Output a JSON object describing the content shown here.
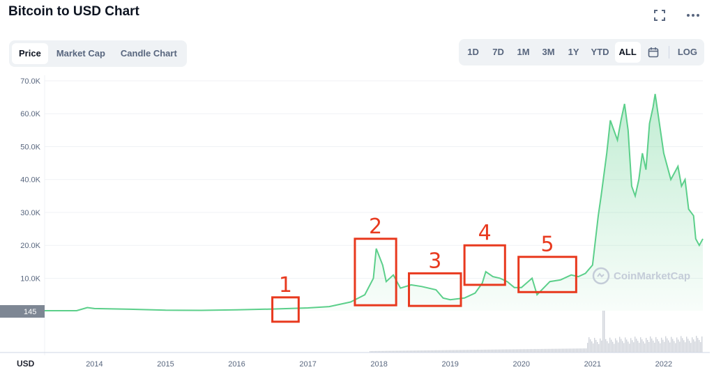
{
  "header": {
    "title": "Bitcoin to USD Chart"
  },
  "icons": {
    "fullscreen": "fullscreen-icon",
    "more": "more-icon",
    "calendar": "calendar-icon"
  },
  "tabs": [
    {
      "label": "Price",
      "active": true
    },
    {
      "label": "Market Cap",
      "active": false
    },
    {
      "label": "Candle Chart",
      "active": false
    }
  ],
  "ranges": [
    {
      "label": "1D",
      "active": false
    },
    {
      "label": "7D",
      "active": false
    },
    {
      "label": "1M",
      "active": false
    },
    {
      "label": "3M",
      "active": false
    },
    {
      "label": "1Y",
      "active": false
    },
    {
      "label": "YTD",
      "active": false
    },
    {
      "label": "ALL",
      "active": true
    }
  ],
  "log_label": "LOG",
  "watermark": "CoinMarketCap",
  "colors": {
    "line": "#5bcf8a",
    "fill": "#d9f4e3",
    "annotation": "#e8391e",
    "price_tag": "#7e8794",
    "volume": "#cfd3da"
  },
  "chart_data": {
    "type": "line",
    "x_unit": "year",
    "xticks": [
      "2014",
      "2015",
      "2016",
      "2017",
      "2018",
      "2019",
      "2020",
      "2021",
      "2022"
    ],
    "xlim": [
      2013.3,
      2022.55
    ],
    "yticks": [
      "70.0K",
      "60.0K",
      "50.0K",
      "40.0K",
      "30.0K",
      "20.0K",
      "10.0K"
    ],
    "ylim": [
      145,
      70000
    ],
    "corner_label": "USD",
    "current_price_tag": "145",
    "x": [
      2013.3,
      2013.75,
      2013.9,
      2014.0,
      2014.5,
      2015.0,
      2015.5,
      2016.0,
      2016.5,
      2017.0,
      2017.3,
      2017.6,
      2017.8,
      2017.92,
      2017.96,
      2018.05,
      2018.1,
      2018.2,
      2018.3,
      2018.45,
      2018.6,
      2018.8,
      2018.9,
      2019.0,
      2019.2,
      2019.35,
      2019.45,
      2019.5,
      2019.6,
      2019.7,
      2019.8,
      2019.9,
      2020.0,
      2020.15,
      2020.22,
      2020.4,
      2020.55,
      2020.7,
      2020.8,
      2020.9,
      2021.0,
      2021.08,
      2021.12,
      2021.2,
      2021.25,
      2021.3,
      2021.35,
      2021.4,
      2021.45,
      2021.5,
      2021.55,
      2021.6,
      2021.65,
      2021.7,
      2021.75,
      2021.8,
      2021.85,
      2021.88,
      2021.92,
      2022.0,
      2022.1,
      2022.2,
      2022.25,
      2022.3,
      2022.35,
      2022.42,
      2022.45,
      2022.5,
      2022.55
    ],
    "y": [
      145,
      150,
      1100,
      800,
      600,
      300,
      250,
      400,
      650,
      1000,
      1400,
      2800,
      5000,
      10000,
      19000,
      14000,
      9000,
      11000,
      7000,
      8000,
      7500,
      6500,
      4000,
      3500,
      4000,
      5500,
      8500,
      12000,
      10500,
      10000,
      9000,
      7200,
      7200,
      10000,
      5000,
      9000,
      9500,
      11000,
      10500,
      11500,
      14000,
      29000,
      35000,
      48000,
      58000,
      55000,
      52000,
      58000,
      63000,
      55000,
      38000,
      35000,
      40000,
      48000,
      43000,
      57000,
      62000,
      66000,
      60000,
      48000,
      40000,
      44000,
      38000,
      40000,
      31000,
      29000,
      22000,
      20000,
      22000
    ],
    "volume_note": "gray volume bars along bottom"
  },
  "annotations": [
    {
      "label": "1"
    },
    {
      "label": "2"
    },
    {
      "label": "3"
    },
    {
      "label": "4"
    },
    {
      "label": "5"
    }
  ]
}
